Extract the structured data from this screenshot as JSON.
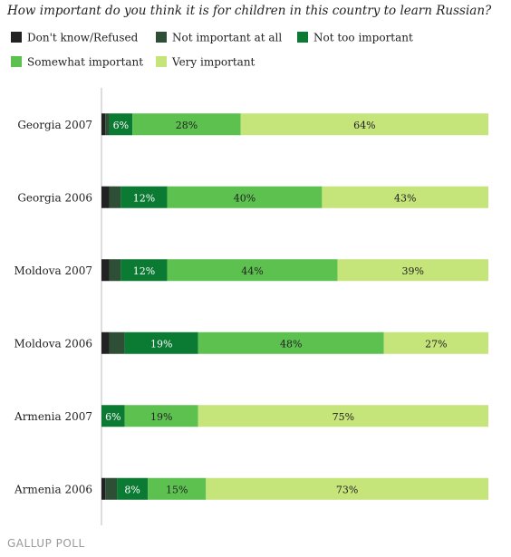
{
  "title": "How important do you think it is for children in this country to learn Russian?",
  "footer": "GALLUP POLL",
  "chart_data": {
    "type": "bar",
    "orientation": "horizontal",
    "stacked": true,
    "categories": [
      "Georgia 2007",
      "Georgia 2006",
      "Moldova 2007",
      "Moldova 2006",
      "Armenia 2007",
      "Armenia 2006"
    ],
    "series": [
      {
        "name": "Don't know/Refused",
        "color": "#222222",
        "values": [
          1,
          2,
          2,
          2,
          0,
          1
        ],
        "labels": [
          "",
          "",
          "",
          "",
          "",
          ""
        ]
      },
      {
        "name": "Not important at all",
        "color": "#2e4f36",
        "values": [
          1,
          3,
          3,
          4,
          0,
          3
        ],
        "labels": [
          "",
          "",
          "",
          "",
          "",
          ""
        ]
      },
      {
        "name": "Not too important",
        "color": "#0b7a33",
        "values": [
          6,
          12,
          12,
          19,
          6,
          8
        ],
        "labels": [
          "6%",
          "12%",
          "12%",
          "19%",
          "6%",
          "8%"
        ]
      },
      {
        "name": "Somewhat important",
        "color": "#5dc150",
        "values": [
          28,
          40,
          44,
          48,
          19,
          15
        ],
        "labels": [
          "28%",
          "40%",
          "44%",
          "48%",
          "19%",
          "15%"
        ]
      },
      {
        "name": "Very important",
        "color": "#c5e47a",
        "values": [
          64,
          43,
          39,
          27,
          75,
          73
        ],
        "labels": [
          "64%",
          "43%",
          "39%",
          "27%",
          "75%",
          "73%"
        ]
      }
    ],
    "xlim": [
      0,
      100
    ],
    "legend": "top",
    "grid": false
  }
}
